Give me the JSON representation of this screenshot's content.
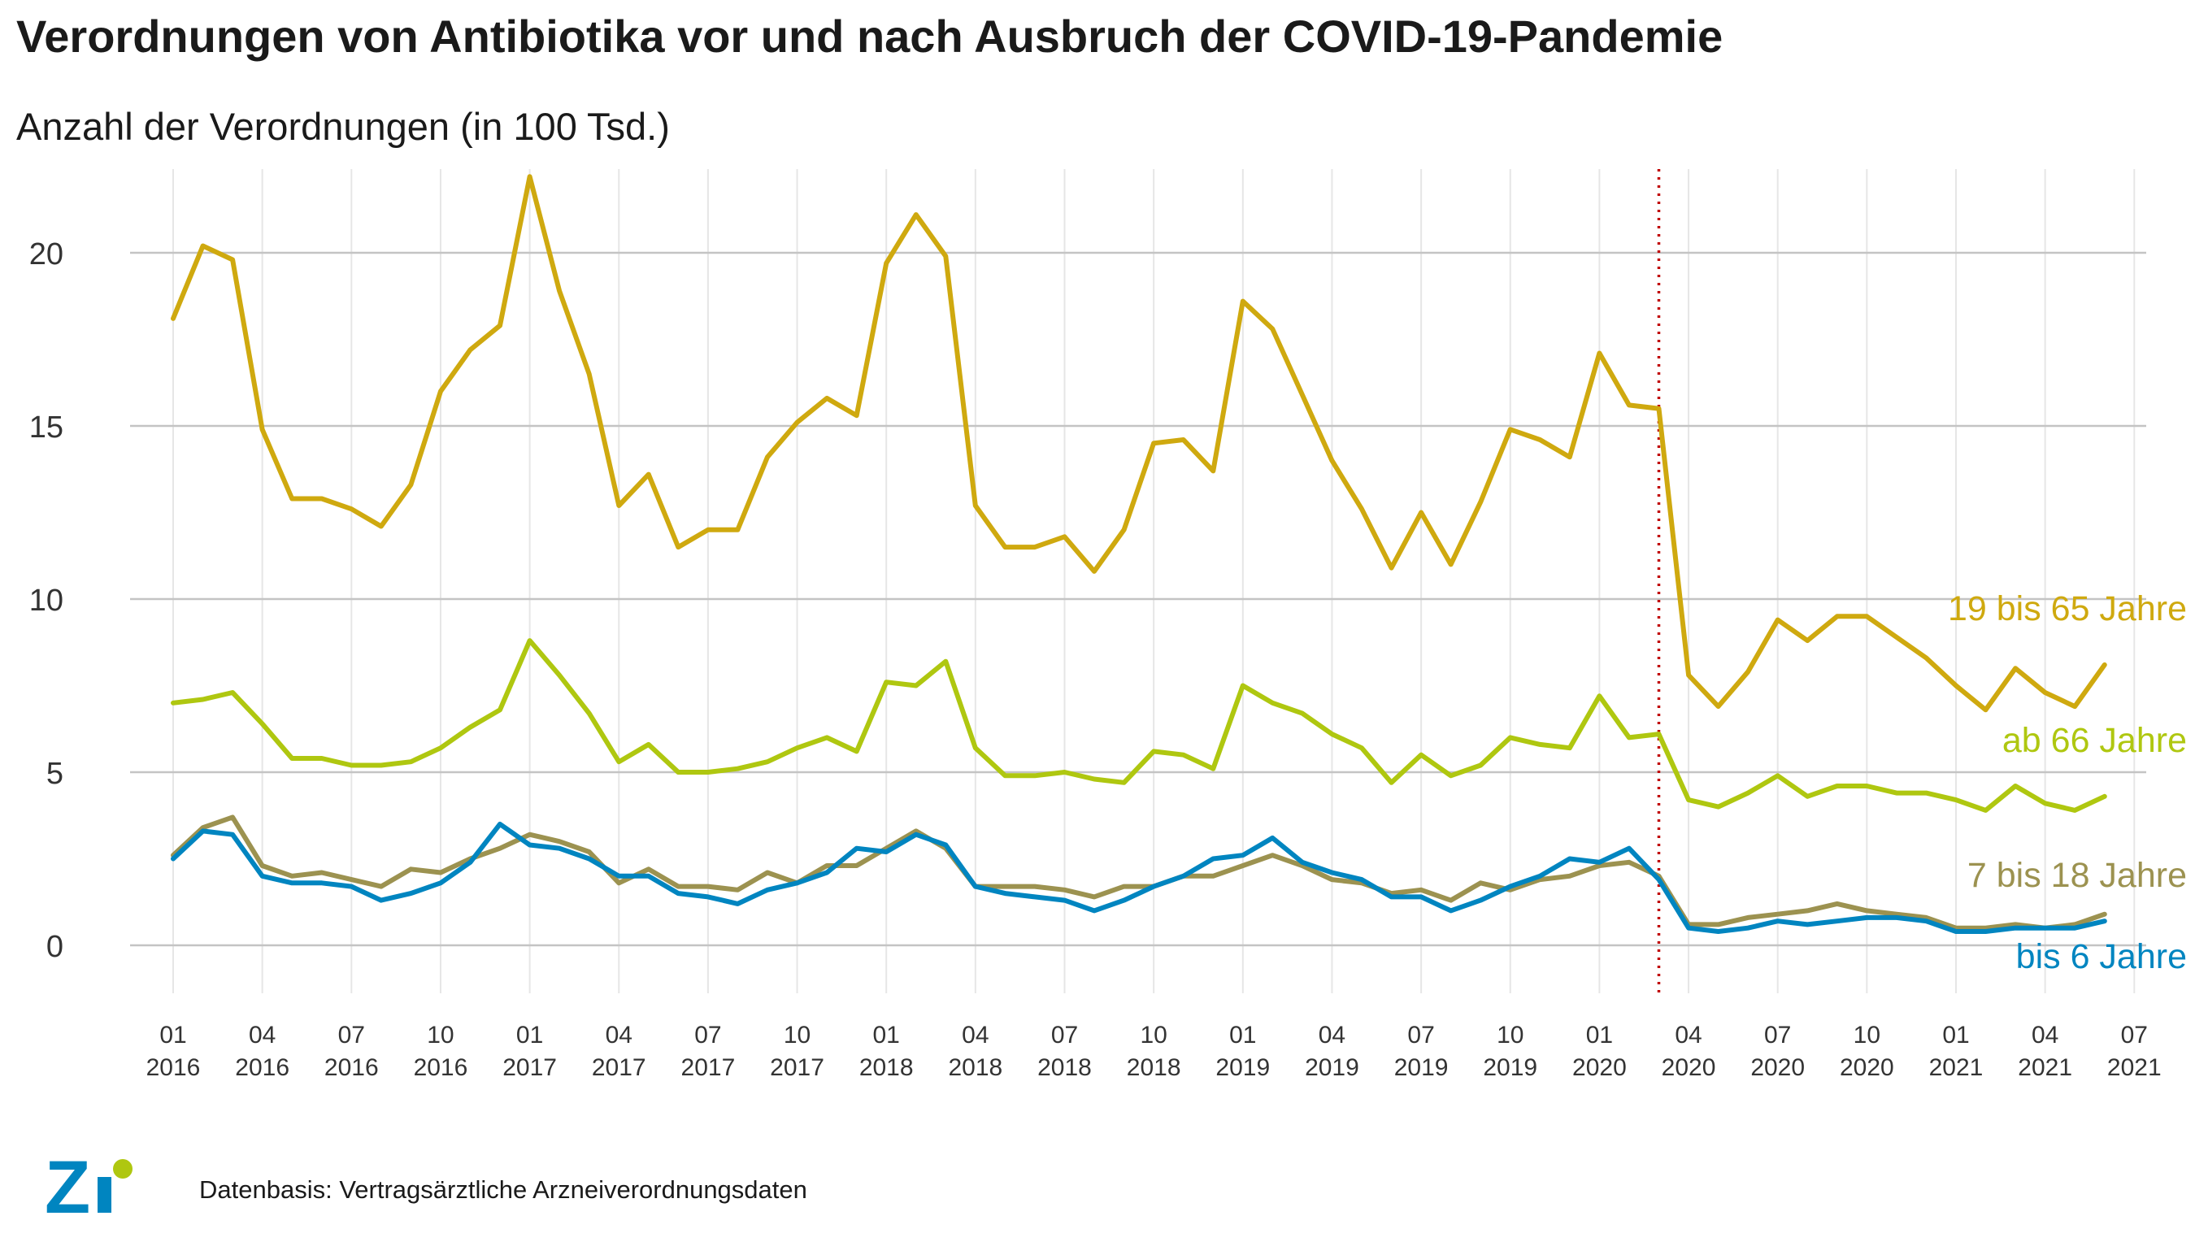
{
  "title": "Verordnungen von Antibiotika vor und nach Ausbruch der COVID-19-Pandemie",
  "subtitle": "Anzahl der Verordnungen (in 100 Tsd.)",
  "source": "Datenbasis: Vertragsärztliche Arzneiverordnungsdaten",
  "logo_text": "Zi",
  "colors": {
    "accent_blue": "#0085C0",
    "accent_green": "#AFC710",
    "marker": "#C00000"
  },
  "chart_data": {
    "type": "line",
    "title": "Verordnungen von Antibiotika vor und nach Ausbruch der COVID-19-Pandemie",
    "ylabel": "Anzahl der Verordnungen (in 100 Tsd.)",
    "xlabel": "",
    "x": [
      "2016-01",
      "2016-02",
      "2016-03",
      "2016-04",
      "2016-05",
      "2016-06",
      "2016-07",
      "2016-08",
      "2016-09",
      "2016-10",
      "2016-11",
      "2016-12",
      "2017-01",
      "2017-02",
      "2017-03",
      "2017-04",
      "2017-05",
      "2017-06",
      "2017-07",
      "2017-08",
      "2017-09",
      "2017-10",
      "2017-11",
      "2017-12",
      "2018-01",
      "2018-02",
      "2018-03",
      "2018-04",
      "2018-05",
      "2018-06",
      "2018-07",
      "2018-08",
      "2018-09",
      "2018-10",
      "2018-11",
      "2018-12",
      "2019-01",
      "2019-02",
      "2019-03",
      "2019-04",
      "2019-05",
      "2019-06",
      "2019-07",
      "2019-08",
      "2019-09",
      "2019-10",
      "2019-11",
      "2019-12",
      "2020-01",
      "2020-02",
      "2020-03",
      "2020-04",
      "2020-05",
      "2020-06",
      "2020-07",
      "2020-08",
      "2020-09",
      "2020-10",
      "2020-11",
      "2020-12",
      "2021-01",
      "2021-02",
      "2021-03",
      "2021-04",
      "2021-05",
      "2021-06"
    ],
    "x_ticks": [
      {
        "x": "2016-01",
        "month": "01",
        "year": "2016"
      },
      {
        "x": "2016-04",
        "month": "04",
        "year": "2016"
      },
      {
        "x": "2016-07",
        "month": "07",
        "year": "2016"
      },
      {
        "x": "2016-10",
        "month": "10",
        "year": "2016"
      },
      {
        "x": "2017-01",
        "month": "01",
        "year": "2017"
      },
      {
        "x": "2017-04",
        "month": "04",
        "year": "2017"
      },
      {
        "x": "2017-07",
        "month": "07",
        "year": "2017"
      },
      {
        "x": "2017-10",
        "month": "10",
        "year": "2017"
      },
      {
        "x": "2018-01",
        "month": "01",
        "year": "2018"
      },
      {
        "x": "2018-04",
        "month": "04",
        "year": "2018"
      },
      {
        "x": "2018-07",
        "month": "07",
        "year": "2018"
      },
      {
        "x": "2018-10",
        "month": "10",
        "year": "2018"
      },
      {
        "x": "2019-01",
        "month": "01",
        "year": "2019"
      },
      {
        "x": "2019-04",
        "month": "04",
        "year": "2019"
      },
      {
        "x": "2019-07",
        "month": "07",
        "year": "2019"
      },
      {
        "x": "2019-10",
        "month": "10",
        "year": "2019"
      },
      {
        "x": "2020-01",
        "month": "01",
        "year": "2020"
      },
      {
        "x": "2020-04",
        "month": "04",
        "year": "2020"
      },
      {
        "x": "2020-07",
        "month": "07",
        "year": "2020"
      },
      {
        "x": "2020-10",
        "month": "10",
        "year": "2020"
      },
      {
        "x": "2021-01",
        "month": "01",
        "year": "2021"
      },
      {
        "x": "2021-04",
        "month": "04",
        "year": "2021"
      },
      {
        "x": "2021-07",
        "month": "07",
        "year": "2021"
      }
    ],
    "y_ticks": [
      0,
      5,
      10,
      15,
      20
    ],
    "ylim": [
      -1.4,
      22.3
    ],
    "grid": true,
    "legend": "direct labels at line ends (right)",
    "vline": {
      "x": "2020-03",
      "style": "dotted",
      "color": "#C00000"
    },
    "series": [
      {
        "name": "19 bis 65 Jahre",
        "color": "#CFA90F",
        "values": [
          18.1,
          20.2,
          19.8,
          14.9,
          12.9,
          12.9,
          12.6,
          12.1,
          13.3,
          16.0,
          17.2,
          17.9,
          22.2,
          18.9,
          16.5,
          12.7,
          13.6,
          11.5,
          12.0,
          12.0,
          14.1,
          15.1,
          15.8,
          15.3,
          19.7,
          21.1,
          19.9,
          12.7,
          11.5,
          11.5,
          11.8,
          10.8,
          12.0,
          14.5,
          14.6,
          13.7,
          18.6,
          17.8,
          15.9,
          14.0,
          12.6,
          10.9,
          12.5,
          11.0,
          12.8,
          14.9,
          14.6,
          14.1,
          17.1,
          15.6,
          15.5,
          7.8,
          6.9,
          7.9,
          9.4,
          8.8,
          9.5,
          9.5,
          8.9,
          8.3,
          7.5,
          6.8,
          8.0,
          7.3,
          6.9,
          8.1
        ]
      },
      {
        "name": "ab 66 Jahre",
        "color": "#AFC710",
        "values": [
          7.0,
          7.1,
          7.3,
          6.4,
          5.4,
          5.4,
          5.2,
          5.2,
          5.3,
          5.7,
          6.3,
          6.8,
          8.8,
          7.8,
          6.7,
          5.3,
          5.8,
          5.0,
          5.0,
          5.1,
          5.3,
          5.7,
          6.0,
          5.6,
          7.6,
          7.5,
          8.2,
          5.7,
          4.9,
          4.9,
          5.0,
          4.8,
          4.7,
          5.6,
          5.5,
          5.1,
          7.5,
          7.0,
          6.7,
          6.1,
          5.7,
          4.7,
          5.5,
          4.9,
          5.2,
          6.0,
          5.8,
          5.7,
          7.2,
          6.0,
          6.1,
          4.2,
          4.0,
          4.4,
          4.9,
          4.3,
          4.6,
          4.6,
          4.4,
          4.4,
          4.2,
          3.9,
          4.6,
          4.1,
          3.9,
          4.3
        ]
      },
      {
        "name": "7 bis 18 Jahre",
        "color": "#9C9250",
        "values": [
          2.6,
          3.4,
          3.7,
          2.3,
          2.0,
          2.1,
          1.9,
          1.7,
          2.2,
          2.1,
          2.5,
          2.8,
          3.2,
          3.0,
          2.7,
          1.8,
          2.2,
          1.7,
          1.7,
          1.6,
          2.1,
          1.8,
          2.3,
          2.3,
          2.8,
          3.3,
          2.8,
          1.7,
          1.7,
          1.7,
          1.6,
          1.4,
          1.7,
          1.7,
          2.0,
          2.0,
          2.3,
          2.6,
          2.3,
          1.9,
          1.8,
          1.5,
          1.6,
          1.3,
          1.8,
          1.6,
          1.9,
          2.0,
          2.3,
          2.4,
          2.0,
          0.6,
          0.6,
          0.8,
          0.9,
          1.0,
          1.2,
          1.0,
          0.9,
          0.8,
          0.5,
          0.5,
          0.6,
          0.5,
          0.6,
          0.9
        ]
      },
      {
        "name": "bis 6 Jahre",
        "color": "#0085C0",
        "values": [
          2.5,
          3.3,
          3.2,
          2.0,
          1.8,
          1.8,
          1.7,
          1.3,
          1.5,
          1.8,
          2.4,
          3.5,
          2.9,
          2.8,
          2.5,
          2.0,
          2.0,
          1.5,
          1.4,
          1.2,
          1.6,
          1.8,
          2.1,
          2.8,
          2.7,
          3.2,
          2.9,
          1.7,
          1.5,
          1.4,
          1.3,
          1.0,
          1.3,
          1.7,
          2.0,
          2.5,
          2.6,
          3.1,
          2.4,
          2.1,
          1.9,
          1.4,
          1.4,
          1.0,
          1.3,
          1.7,
          2.0,
          2.5,
          2.4,
          2.8,
          1.9,
          0.5,
          0.4,
          0.5,
          0.7,
          0.6,
          0.7,
          0.8,
          0.8,
          0.7,
          0.4,
          0.4,
          0.5,
          0.5,
          0.5,
          0.7
        ]
      }
    ]
  }
}
